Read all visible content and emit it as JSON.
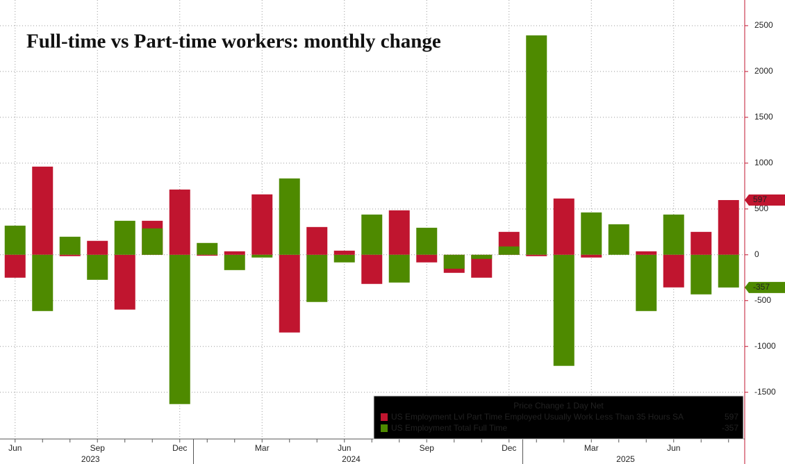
{
  "chart_data": {
    "type": "bar",
    "title": "Full-time vs Part-time workers: monthly change",
    "categories": [
      "Jun",
      null,
      null,
      "Sep",
      null,
      null,
      "Dec",
      null,
      null,
      "Mar",
      null,
      null,
      "Jun",
      null,
      null,
      "Sep",
      null,
      null,
      "Dec",
      null,
      null,
      "Mar",
      null,
      null,
      "Jun",
      null,
      null
    ],
    "years": [
      "2023",
      "2024",
      "2025"
    ],
    "series": [
      {
        "name": "US Employment Lvl Part Time Employed Usually Work Less Than 35 Hours SA",
        "color": "#c0152f",
        "values": [
          -250,
          962,
          -15,
          152,
          -598,
          371,
          712,
          -10,
          38,
          659,
          -848,
          303,
          45,
          -318,
          485,
          -83,
          -197,
          -250,
          250,
          -15,
          614,
          -30,
          0,
          38,
          -356,
          250,
          597
        ]
      },
      {
        "name": "US Employment Total Full Time",
        "color": "#4e8a00",
        "values": [
          318,
          -614,
          197,
          -273,
          371,
          288,
          -1629,
          129,
          -167,
          -30,
          833,
          -515,
          -83,
          439,
          -303,
          295,
          -152,
          -45,
          91,
          2394,
          -1212,
          462,
          333,
          -614,
          439,
          -432,
          -357
        ]
      }
    ],
    "legend_title": "Price Change 1 Day Net",
    "ylim": [
      -2010,
      2780
    ],
    "yticks": [
      -1500,
      -1000,
      -500,
      0,
      500,
      1000,
      1500,
      2000,
      2500
    ],
    "grid": true
  }
}
